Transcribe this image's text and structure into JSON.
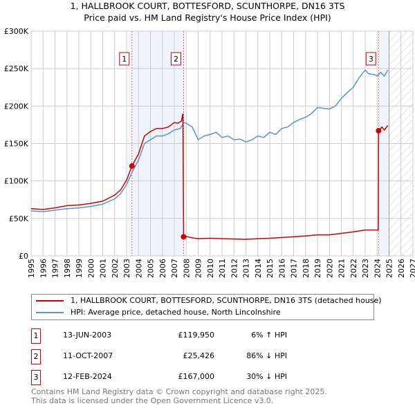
{
  "title": "1, HALLBROOK COURT, BOTTESFORD, SCUNTHORPE, DN16 3TS",
  "subtitle": "Price paid vs. HM Land Registry's House Price Index (HPI)",
  "chart_data": {
    "type": "line",
    "xlim": [
      1995,
      2027
    ],
    "ylim": [
      0,
      300000
    ],
    "yticks": [
      {
        "v": 0,
        "label": "£0"
      },
      {
        "v": 50000,
        "label": "£50K"
      },
      {
        "v": 100000,
        "label": "£100K"
      },
      {
        "v": 150000,
        "label": "£150K"
      },
      {
        "v": 200000,
        "label": "£200K"
      },
      {
        "v": 250000,
        "label": "£250K"
      },
      {
        "v": 300000,
        "label": "£300K"
      }
    ],
    "xticks": [
      "1995",
      "1996",
      "1997",
      "1998",
      "1999",
      "2000",
      "2001",
      "2002",
      "2003",
      "2004",
      "2005",
      "2006",
      "2007",
      "2008",
      "2009",
      "2010",
      "2011",
      "2012",
      "2013",
      "2014",
      "2015",
      "2016",
      "2017",
      "2018",
      "2019",
      "2020",
      "2021",
      "2022",
      "2023",
      "2024",
      "2025",
      "2026",
      "2027"
    ],
    "grid": true,
    "shaded_ranges": [
      [
        2003.45,
        2007.78
      ],
      [
        2024.12,
        2025.0
      ]
    ],
    "forecast_hatch_from": 2025.0,
    "series": [
      {
        "name": "1, HALLBROOK COURT, BOTTESFORD, SCUNTHORPE, DN16 3TS (detached house)",
        "color": "#cc0000",
        "x": [
          1995,
          1996,
          1997,
          1998,
          1999,
          2000,
          2001,
          2002,
          2002.5,
          2003,
          2003.45,
          2004,
          2004.5,
          2005,
          2005.5,
          2006,
          2006.5,
          2007,
          2007.3,
          2007.6,
          2007.72,
          2007.78,
          2008,
          2008.5,
          2009,
          2010,
          2011,
          2012,
          2013,
          2014,
          2015,
          2016,
          2017,
          2018,
          2019,
          2020,
          2021,
          2022,
          2023,
          2024.1,
          2024.12,
          2024.4,
          2024.6,
          2024.9
        ],
        "y": [
          63000,
          62000,
          64000,
          67000,
          68000,
          70000,
          73000,
          81000,
          88000,
          101000,
          119950,
          136000,
          160000,
          166000,
          170000,
          170000,
          172000,
          178000,
          177000,
          180000,
          190000,
          25426,
          26000,
          24000,
          23000,
          23500,
          23000,
          22500,
          22000,
          23000,
          23500,
          24500,
          25500,
          26500,
          28000,
          28000,
          30000,
          32000,
          34500,
          34500,
          167000,
          172000,
          168000,
          174000
        ]
      },
      {
        "name": "HPI: Average price, detached house, North Lincolnshire",
        "color": "#5b8fd4",
        "x": [
          1995,
          1996,
          1997,
          1998,
          1999,
          2000,
          2001,
          2002,
          2002.5,
          2003,
          2003.5,
          2004,
          2004.5,
          2005,
          2005.5,
          2006,
          2006.5,
          2007,
          2007.5,
          2007.8,
          2008,
          2008.5,
          2009,
          2009.5,
          2010,
          2010.5,
          2011,
          2011.5,
          2012,
          2012.5,
          2013,
          2013.5,
          2014,
          2014.5,
          2015,
          2015.5,
          2016,
          2016.5,
          2017,
          2017.5,
          2018,
          2018.5,
          2019,
          2019.5,
          2020,
          2020.5,
          2021,
          2021.5,
          2022,
          2022.5,
          2023,
          2023.3,
          2023.8,
          2024,
          2024.3,
          2024.6,
          2024.9
        ],
        "y": [
          60000,
          59000,
          61000,
          63000,
          64000,
          66000,
          69000,
          76000,
          83000,
          95000,
          113000,
          128000,
          150000,
          155000,
          160000,
          160000,
          163000,
          168000,
          170000,
          178000,
          177000,
          172000,
          155000,
          160000,
          162000,
          165000,
          158000,
          160000,
          155000,
          156000,
          152000,
          155000,
          160000,
          158000,
          165000,
          162000,
          170000,
          172000,
          178000,
          182000,
          185000,
          190000,
          198000,
          197000,
          196000,
          200000,
          210000,
          218000,
          225000,
          238000,
          248000,
          243000,
          242000,
          240000,
          245000,
          240000,
          248000
        ]
      }
    ],
    "markers": [
      {
        "label": "1",
        "x": 2003.45,
        "y": 119950
      },
      {
        "label": "2",
        "x": 2007.78,
        "y": 25426
      },
      {
        "label": "3",
        "x": 2024.12,
        "y": 167000
      }
    ]
  },
  "legend": [
    "1, HALLBROOK COURT, BOTTESFORD, SCUNTHORPE, DN16 3TS (detached house)",
    "HPI: Average price, detached house, North Lincolnshire"
  ],
  "transactions": [
    {
      "num": "1",
      "date": "13-JUN-2003",
      "price": "£119,950",
      "hpi": "6% ↑ HPI"
    },
    {
      "num": "2",
      "date": "11-OCT-2007",
      "price": "£25,426",
      "hpi": "86% ↓ HPI"
    },
    {
      "num": "3",
      "date": "12-FEB-2024",
      "price": "£167,000",
      "hpi": "30% ↓ HPI"
    }
  ],
  "footer": [
    "Contains HM Land Registry data © Crown copyright and database right 2025.",
    "This data is licensed under the Open Government Licence v3.0."
  ]
}
